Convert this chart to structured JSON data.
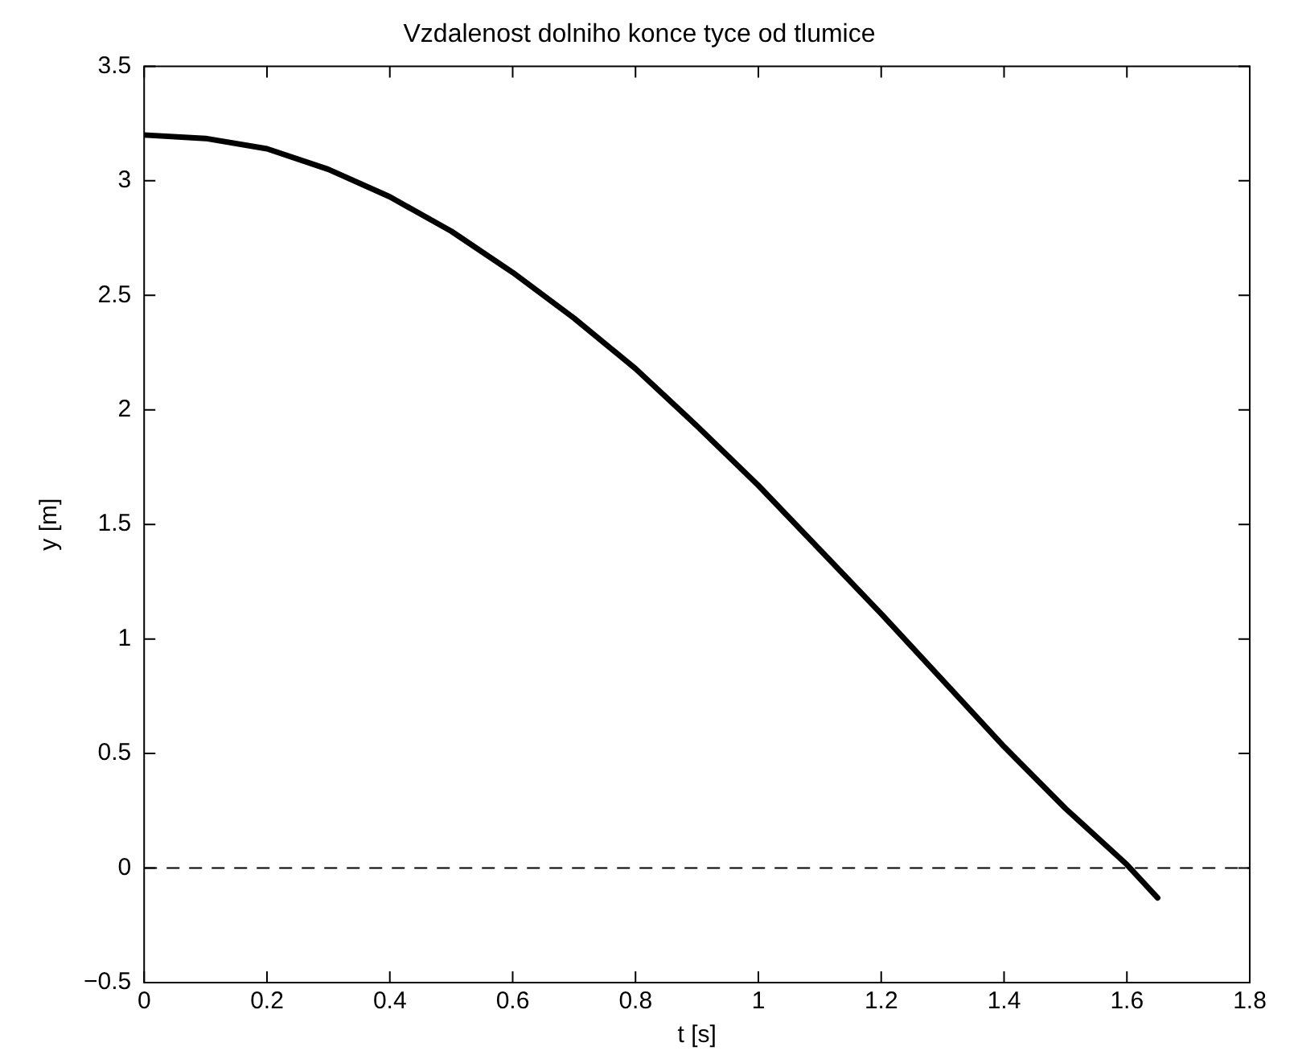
{
  "chart_data": {
    "type": "line",
    "title": "Vzdalenost dolniho konce tyce od tlumice",
    "xlabel": "t [s]",
    "ylabel": "y [m]",
    "x": [
      0,
      0.1,
      0.2,
      0.3,
      0.4,
      0.5,
      0.6,
      0.7,
      0.8,
      0.9,
      1.0,
      1.1,
      1.2,
      1.3,
      1.4,
      1.5,
      1.6,
      1.65
    ],
    "series": [
      {
        "color": "#000000",
        "values": [
          3.2,
          3.185,
          3.14,
          3.05,
          2.93,
          2.78,
          2.6,
          2.4,
          2.18,
          1.93,
          1.67,
          1.39,
          1.11,
          0.82,
          0.53,
          0.26,
          0.015,
          -0.13
        ]
      }
    ],
    "xlim": [
      0,
      1.8
    ],
    "xticks": [
      0,
      0.2,
      0.4,
      0.6,
      0.8,
      1,
      1.2,
      1.4,
      1.6,
      1.8
    ],
    "ylim": [
      -0.5,
      3.5
    ],
    "yticks": [
      {
        "value": -0.5,
        "label": "−0.5"
      },
      0,
      0.5,
      1,
      1.5,
      2,
      2.5,
      3,
      3.5
    ],
    "ref_lines": [
      {
        "axis": "y",
        "value": 0,
        "color": "#000000",
        "line_style": "dashed"
      }
    ],
    "legend": false,
    "marker": "none",
    "line_style": "solid"
  }
}
